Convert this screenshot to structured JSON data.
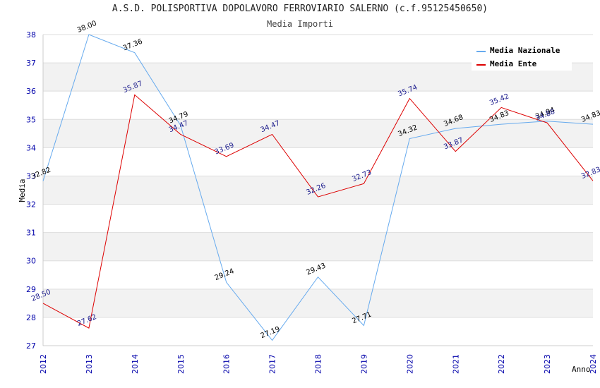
{
  "chart_data": {
    "type": "line",
    "title": "A.S.D. POLISPORTIVA DOPOLAVORO FERROVIARIO SALERNO (c.f.95125450650)",
    "subtitle": "Media Importi",
    "xlabel": "Anno",
    "ylabel": "Media",
    "x": [
      "2012",
      "2013",
      "2014",
      "2015",
      "2016",
      "2017",
      "2018",
      "2019",
      "2020",
      "2021",
      "2022",
      "2023",
      "2024"
    ],
    "yticks": [
      "27",
      "28",
      "29",
      "30",
      "31",
      "32",
      "33",
      "34",
      "35",
      "36",
      "37",
      "38"
    ],
    "ylim": [
      27,
      38
    ],
    "series": [
      {
        "name": "Media Nazionale",
        "color": "#66aaee",
        "values": [
          32.82,
          38.0,
          37.36,
          34.79,
          29.24,
          27.19,
          29.43,
          27.71,
          34.32,
          34.68,
          34.83,
          34.94,
          34.83
        ],
        "labels": [
          "32.82",
          "38.00",
          "37.36",
          "34.79",
          "29.24",
          "27.19",
          "29.43",
          "27.71",
          "34.32",
          "34.68",
          "34.83",
          "34.94",
          "34.83"
        ]
      },
      {
        "name": "Media Ente",
        "color": "#dd0000",
        "values": [
          28.5,
          27.62,
          35.87,
          34.47,
          33.69,
          34.47,
          32.26,
          32.73,
          35.74,
          33.87,
          35.42,
          34.88,
          32.83
        ],
        "labels": [
          "28.50",
          "27.62",
          "35.87",
          "34.47",
          "33.69",
          "34.47",
          "32.26",
          "32.73",
          "35.74",
          "33.87",
          "35.42",
          "34.88",
          "32.83"
        ]
      }
    ]
  }
}
